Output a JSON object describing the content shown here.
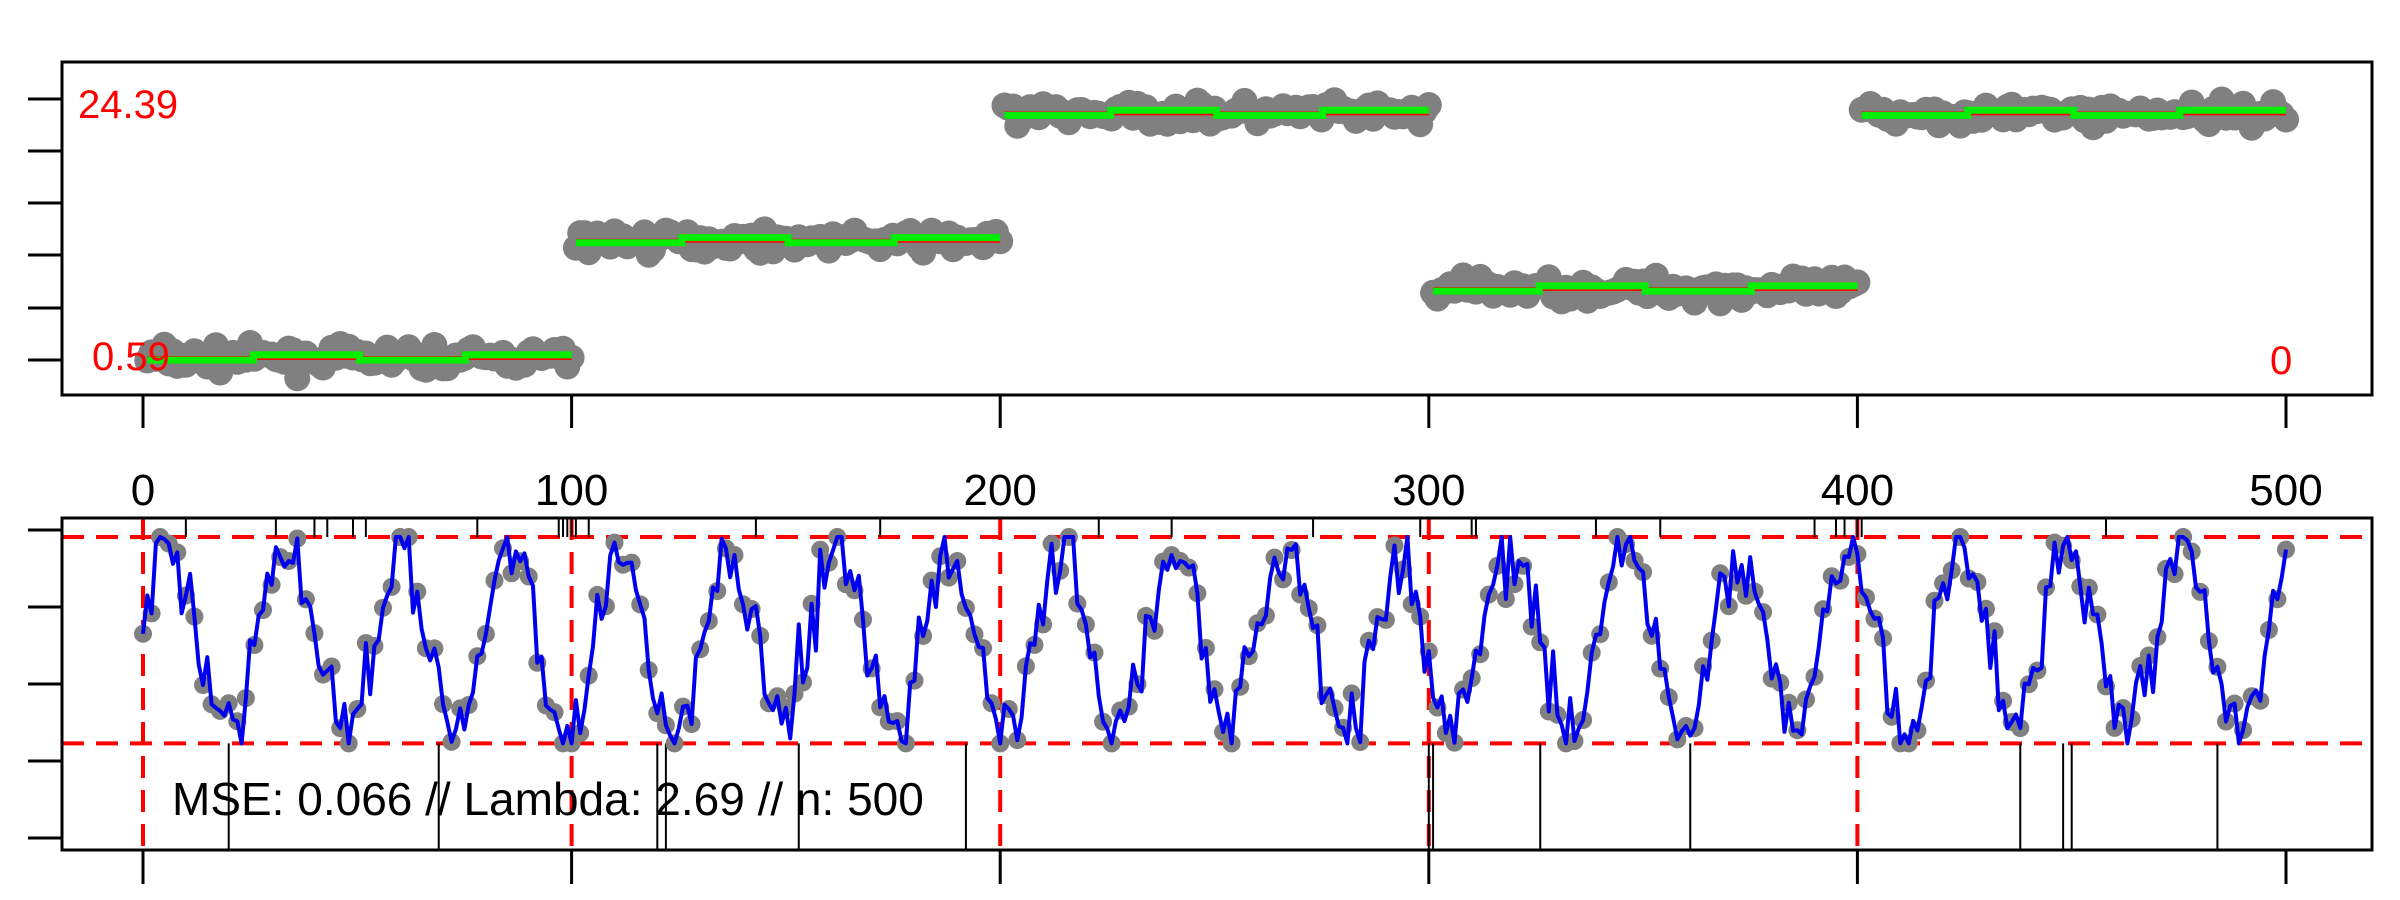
{
  "chart_data": [
    {
      "type": "scatter",
      "panel": "top",
      "description_labels": {
        "max_label": "24.39",
        "min_label": "0.59",
        "end_label": "0"
      },
      "xlim": [
        0,
        500
      ],
      "ylim": [
        -3,
        28
      ],
      "grid": false,
      "x_ticks": [
        0,
        100,
        200,
        300,
        400,
        500
      ],
      "x_tick_labels": [
        "0",
        "100",
        "200",
        "300",
        "400",
        "500"
      ],
      "segments": [
        {
          "x": [
            0,
            100
          ],
          "level": 0.59
        },
        {
          "x": [
            100,
            200
          ],
          "level": 12.0
        },
        {
          "x": [
            200,
            300
          ],
          "level": 24.39
        },
        {
          "x": [
            300,
            400
          ],
          "level": 7.3
        },
        {
          "x": [
            400,
            500
          ],
          "level": 24.39
        }
      ],
      "series": [
        {
          "color": "#808080",
          "style": "points"
        },
        {
          "color": "#ff0000",
          "style": "line"
        },
        {
          "color": "#00ee00",
          "style": "line"
        }
      ]
    },
    {
      "type": "line",
      "panel": "bottom",
      "xlim": [
        0,
        500
      ],
      "ylim": [
        0,
        4.2
      ],
      "grid": false,
      "annotation": "MSE: 0.066 // Lambda: 2.69 // n: 500",
      "reference_vlines": [
        0,
        100,
        200,
        300,
        400
      ],
      "reference_hlines": [
        0.67,
        3.35
      ],
      "changepoint_marks_top": [
        10,
        31,
        40,
        43,
        49,
        52,
        78,
        97,
        98,
        99,
        100,
        101,
        104,
        143,
        172,
        223,
        240,
        273,
        298,
        310,
        311,
        339,
        354,
        390,
        395,
        397,
        400,
        401,
        458
      ],
      "changepoint_marks_bottom": [
        20,
        69,
        120,
        122,
        153,
        192,
        300,
        301,
        326,
        361,
        438,
        448,
        450,
        484
      ],
      "series": [
        {
          "color": "#0000ee",
          "style": "line"
        },
        {
          "color": "#808080",
          "style": "points"
        }
      ]
    }
  ],
  "colors": {
    "points": "#808080",
    "red": "#ff0000",
    "green": "#00ee00",
    "blue": "#0000ee",
    "axis": "#000000"
  }
}
